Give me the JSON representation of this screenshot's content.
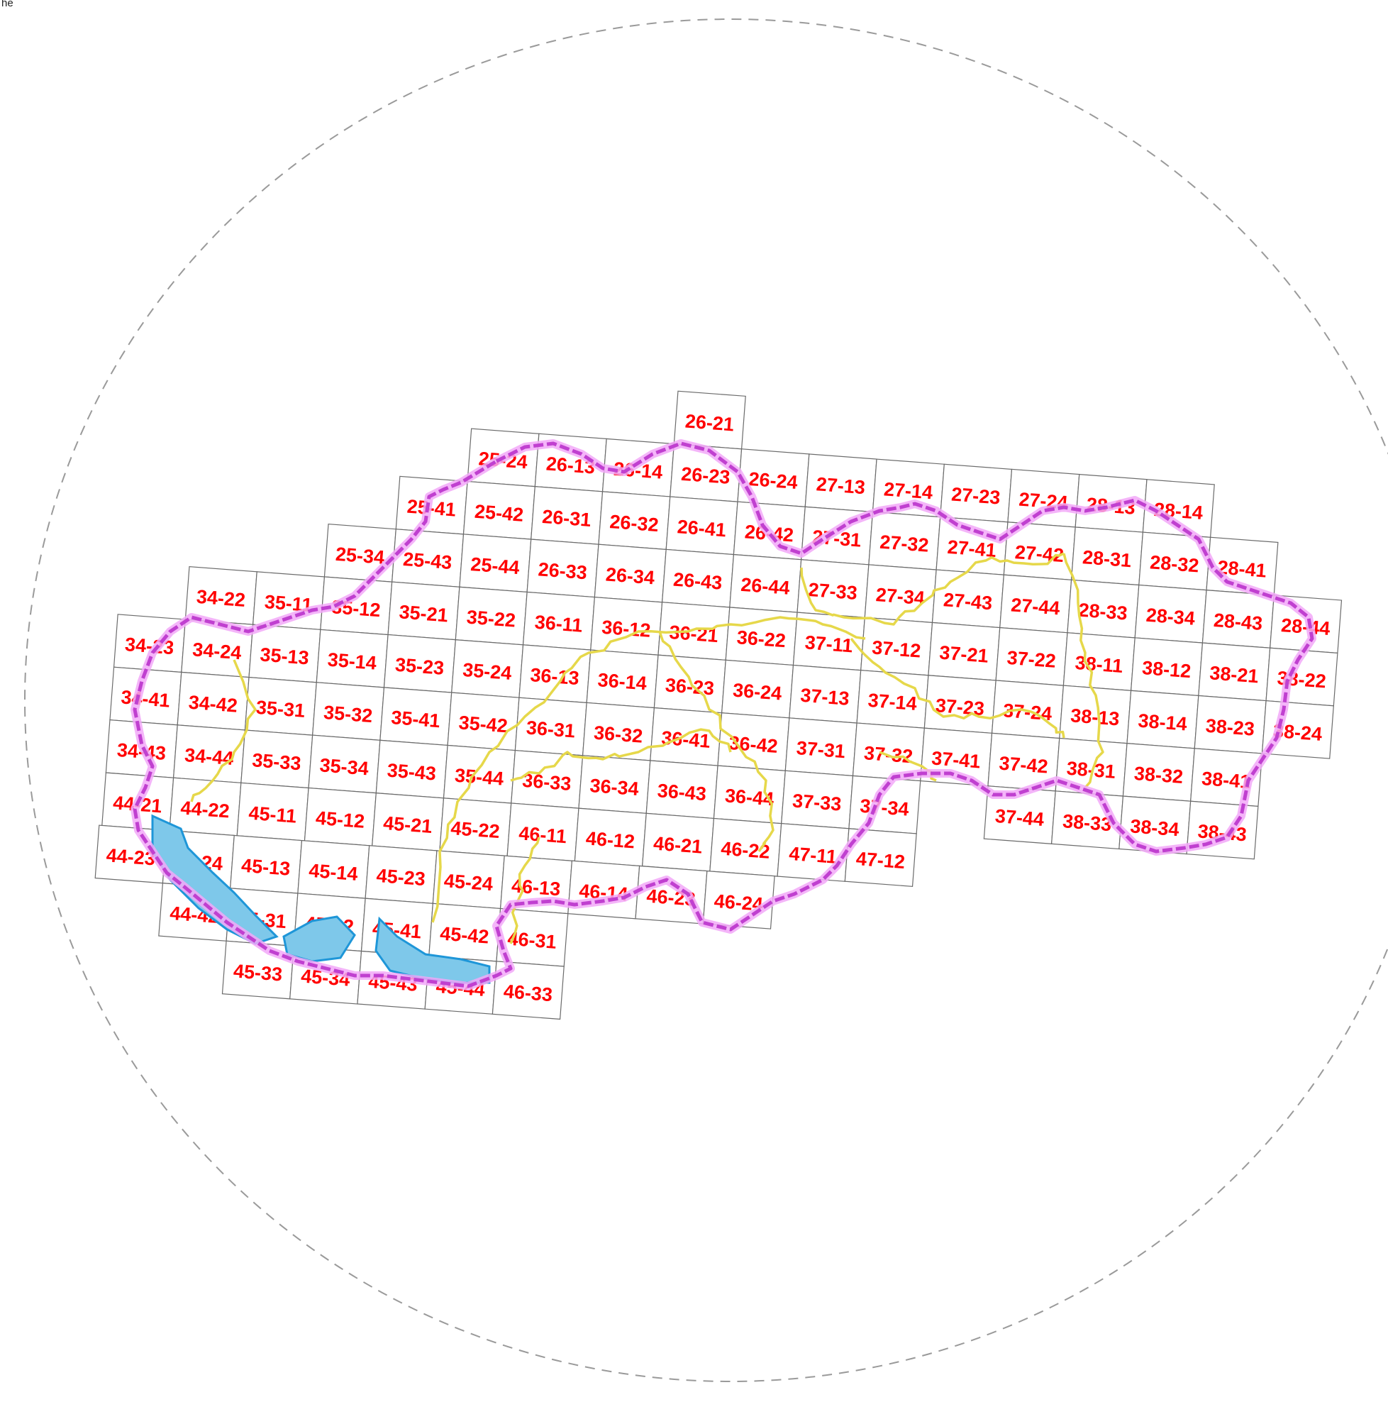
{
  "corner_text": "he",
  "colors": {
    "grid_line": "#6b6b6b",
    "label": "#ff0000",
    "border_line": "#c040d0",
    "border_glow": "#f2a8f8",
    "region_line": "#e6d84a",
    "water": "#7ec8ea",
    "water_edge": "#1e96d8",
    "circle": "#9a9a9a"
  },
  "map_sheets": [
    {
      "id": "26-21",
      "row": 0,
      "col": 9
    },
    {
      "id": "25-24",
      "row": 1,
      "col": 6
    },
    {
      "id": "26-13",
      "row": 1,
      "col": 7
    },
    {
      "id": "26-14",
      "row": 1,
      "col": 8
    },
    {
      "id": "26-23",
      "row": 1,
      "col": 9
    },
    {
      "id": "26-24",
      "row": 1,
      "col": 10
    },
    {
      "id": "27-13",
      "row": 1,
      "col": 11
    },
    {
      "id": "27-14",
      "row": 1,
      "col": 12
    },
    {
      "id": "27-23",
      "row": 1,
      "col": 13
    },
    {
      "id": "27-24",
      "row": 1,
      "col": 14
    },
    {
      "id": "28-13",
      "row": 1,
      "col": 15
    },
    {
      "id": "28-14",
      "row": 1,
      "col": 16
    },
    {
      "id": "25-41",
      "row": 2,
      "col": 5
    },
    {
      "id": "25-42",
      "row": 2,
      "col": 6
    },
    {
      "id": "26-31",
      "row": 2,
      "col": 7
    },
    {
      "id": "26-32",
      "row": 2,
      "col": 8
    },
    {
      "id": "26-41",
      "row": 2,
      "col": 9
    },
    {
      "id": "26-42",
      "row": 2,
      "col": 10
    },
    {
      "id": "27-31",
      "row": 2,
      "col": 11
    },
    {
      "id": "27-32",
      "row": 2,
      "col": 12
    },
    {
      "id": "27-41",
      "row": 2,
      "col": 13
    },
    {
      "id": "27-42",
      "row": 2,
      "col": 14
    },
    {
      "id": "28-31",
      "row": 2,
      "col": 15
    },
    {
      "id": "28-32",
      "row": 2,
      "col": 16
    },
    {
      "id": "28-41",
      "row": 2,
      "col": 17
    },
    {
      "id": "25-34",
      "row": 3,
      "col": 4
    },
    {
      "id": "25-43",
      "row": 3,
      "col": 5
    },
    {
      "id": "25-44",
      "row": 3,
      "col": 6
    },
    {
      "id": "26-33",
      "row": 3,
      "col": 7
    },
    {
      "id": "26-34",
      "row": 3,
      "col": 8
    },
    {
      "id": "26-43",
      "row": 3,
      "col": 9
    },
    {
      "id": "26-44",
      "row": 3,
      "col": 10
    },
    {
      "id": "27-33",
      "row": 3,
      "col": 11
    },
    {
      "id": "27-34",
      "row": 3,
      "col": 12
    },
    {
      "id": "27-43",
      "row": 3,
      "col": 13
    },
    {
      "id": "27-44",
      "row": 3,
      "col": 14
    },
    {
      "id": "28-33",
      "row": 3,
      "col": 15
    },
    {
      "id": "28-34",
      "row": 3,
      "col": 16
    },
    {
      "id": "28-43",
      "row": 3,
      "col": 17
    },
    {
      "id": "28-44",
      "row": 3,
      "col": 18
    },
    {
      "id": "34-22",
      "row": 4,
      "col": 2
    },
    {
      "id": "35-11",
      "row": 4,
      "col": 3
    },
    {
      "id": "35-12",
      "row": 4,
      "col": 4
    },
    {
      "id": "35-21",
      "row": 4,
      "col": 5
    },
    {
      "id": "35-22",
      "row": 4,
      "col": 6
    },
    {
      "id": "36-11",
      "row": 4,
      "col": 7
    },
    {
      "id": "36-12",
      "row": 4,
      "col": 8
    },
    {
      "id": "36-21",
      "row": 4,
      "col": 9
    },
    {
      "id": "36-22",
      "row": 4,
      "col": 10
    },
    {
      "id": "37-11",
      "row": 4,
      "col": 11
    },
    {
      "id": "37-12",
      "row": 4,
      "col": 12
    },
    {
      "id": "37-21",
      "row": 4,
      "col": 13
    },
    {
      "id": "37-22",
      "row": 4,
      "col": 14
    },
    {
      "id": "38-11",
      "row": 4,
      "col": 15
    },
    {
      "id": "38-12",
      "row": 4,
      "col": 16
    },
    {
      "id": "38-21",
      "row": 4,
      "col": 17
    },
    {
      "id": "38-22",
      "row": 4,
      "col": 18
    },
    {
      "id": "34-23",
      "row": 5,
      "col": 1
    },
    {
      "id": "34-24",
      "row": 5,
      "col": 2
    },
    {
      "id": "35-13",
      "row": 5,
      "col": 3
    },
    {
      "id": "35-14",
      "row": 5,
      "col": 4
    },
    {
      "id": "35-23",
      "row": 5,
      "col": 5
    },
    {
      "id": "35-24",
      "row": 5,
      "col": 6
    },
    {
      "id": "36-13",
      "row": 5,
      "col": 7
    },
    {
      "id": "36-14",
      "row": 5,
      "col": 8
    },
    {
      "id": "36-23",
      "row": 5,
      "col": 9
    },
    {
      "id": "36-24",
      "row": 5,
      "col": 10
    },
    {
      "id": "37-13",
      "row": 5,
      "col": 11
    },
    {
      "id": "37-14",
      "row": 5,
      "col": 12
    },
    {
      "id": "37-23",
      "row": 5,
      "col": 13
    },
    {
      "id": "37-24",
      "row": 5,
      "col": 14
    },
    {
      "id": "38-13",
      "row": 5,
      "col": 15
    },
    {
      "id": "38-14",
      "row": 5,
      "col": 16
    },
    {
      "id": "38-23",
      "row": 5,
      "col": 17
    },
    {
      "id": "38-24",
      "row": 5,
      "col": 18
    },
    {
      "id": "34-41",
      "row": 6,
      "col": 1
    },
    {
      "id": "34-42",
      "row": 6,
      "col": 2
    },
    {
      "id": "35-31",
      "row": 6,
      "col": 3
    },
    {
      "id": "35-32",
      "row": 6,
      "col": 4
    },
    {
      "id": "35-41",
      "row": 6,
      "col": 5
    },
    {
      "id": "35-42",
      "row": 6,
      "col": 6
    },
    {
      "id": "36-31",
      "row": 6,
      "col": 7
    },
    {
      "id": "36-32",
      "row": 6,
      "col": 8
    },
    {
      "id": "36-41",
      "row": 6,
      "col": 9
    },
    {
      "id": "36-42",
      "row": 6,
      "col": 10
    },
    {
      "id": "37-31",
      "row": 6,
      "col": 11
    },
    {
      "id": "37-32",
      "row": 6,
      "col": 12
    },
    {
      "id": "37-41",
      "row": 6,
      "col": 13
    },
    {
      "id": "37-42",
      "row": 6,
      "col": 14
    },
    {
      "id": "38-31",
      "row": 6,
      "col": 15
    },
    {
      "id": "38-32",
      "row": 6,
      "col": 16
    },
    {
      "id": "38-41",
      "row": 6,
      "col": 17
    },
    {
      "id": "34-43",
      "row": 7,
      "col": 1
    },
    {
      "id": "34-44",
      "row": 7,
      "col": 2
    },
    {
      "id": "35-33",
      "row": 7,
      "col": 3
    },
    {
      "id": "35-34",
      "row": 7,
      "col": 4
    },
    {
      "id": "35-43",
      "row": 7,
      "col": 5
    },
    {
      "id": "35-44",
      "row": 7,
      "col": 6
    },
    {
      "id": "36-33",
      "row": 7,
      "col": 7
    },
    {
      "id": "36-34",
      "row": 7,
      "col": 8
    },
    {
      "id": "36-43",
      "row": 7,
      "col": 9
    },
    {
      "id": "36-44",
      "row": 7,
      "col": 10
    },
    {
      "id": "37-33",
      "row": 7,
      "col": 11
    },
    {
      "id": "37-34",
      "row": 7,
      "col": 12
    },
    {
      "id": "37-44",
      "row": 7,
      "col": 14
    },
    {
      "id": "38-33",
      "row": 7,
      "col": 15
    },
    {
      "id": "38-34",
      "row": 7,
      "col": 16
    },
    {
      "id": "38-43",
      "row": 7,
      "col": 17
    },
    {
      "id": "44-21",
      "row": 8,
      "col": 1
    },
    {
      "id": "44-22",
      "row": 8,
      "col": 2
    },
    {
      "id": "45-11",
      "row": 8,
      "col": 3
    },
    {
      "id": "45-12",
      "row": 8,
      "col": 4
    },
    {
      "id": "45-21",
      "row": 8,
      "col": 5
    },
    {
      "id": "45-22",
      "row": 8,
      "col": 6
    },
    {
      "id": "46-11",
      "row": 8,
      "col": 7
    },
    {
      "id": "46-12",
      "row": 8,
      "col": 8
    },
    {
      "id": "46-21",
      "row": 8,
      "col": 9
    },
    {
      "id": "46-22",
      "row": 8,
      "col": 10
    },
    {
      "id": "47-11",
      "row": 8,
      "col": 11
    },
    {
      "id": "47-12",
      "row": 8,
      "col": 12
    },
    {
      "id": "44-23",
      "row": 9,
      "col": 1
    },
    {
      "id": "44-24",
      "row": 9,
      "col": 2
    },
    {
      "id": "45-13",
      "row": 9,
      "col": 3
    },
    {
      "id": "45-14",
      "row": 9,
      "col": 4
    },
    {
      "id": "45-23",
      "row": 9,
      "col": 5
    },
    {
      "id": "45-24",
      "row": 9,
      "col": 6
    },
    {
      "id": "46-13",
      "row": 9,
      "col": 7
    },
    {
      "id": "46-14",
      "row": 9,
      "col": 8
    },
    {
      "id": "46-23",
      "row": 9,
      "col": 9
    },
    {
      "id": "46-24",
      "row": 9,
      "col": 10
    },
    {
      "id": "44-42",
      "row": 10,
      "col": 2
    },
    {
      "id": "45-31",
      "row": 10,
      "col": 3
    },
    {
      "id": "45-32",
      "row": 10,
      "col": 4
    },
    {
      "id": "45-41",
      "row": 10,
      "col": 5
    },
    {
      "id": "45-42",
      "row": 10,
      "col": 6
    },
    {
      "id": "46-31",
      "row": 10,
      "col": 7
    },
    {
      "id": "45-33",
      "row": 11,
      "col": 3
    },
    {
      "id": "45-34",
      "row": 11,
      "col": 4
    },
    {
      "id": "45-43",
      "row": 11,
      "col": 5
    },
    {
      "id": "45-44",
      "row": 11,
      "col": 6
    },
    {
      "id": "46-33",
      "row": 11,
      "col": 7
    }
  ]
}
